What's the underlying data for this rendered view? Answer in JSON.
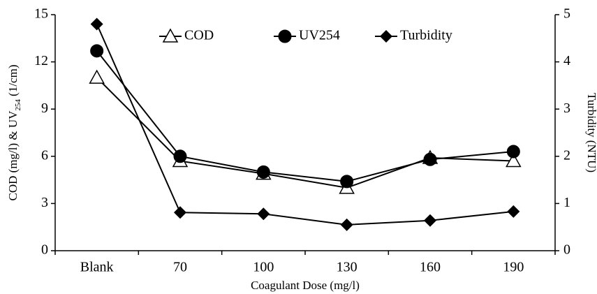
{
  "chart_data": {
    "type": "line",
    "categories": [
      "Blank",
      "70",
      "100",
      "130",
      "160",
      "190"
    ],
    "x_label": "Coagulant Dose (mg/l)",
    "y_label": [
      "COD (mg/l) & UV",
      "254",
      " (1/cm)"
    ],
    "y2_label": "Turbidity (NTU)",
    "ylim": [
      0,
      15
    ],
    "yticks": [
      0,
      3,
      6,
      9,
      12,
      15
    ],
    "y2lim": [
      0,
      5
    ],
    "y2ticks": [
      0,
      1,
      2,
      3,
      4,
      5
    ],
    "legend": "top",
    "series": [
      {
        "name": "COD",
        "color": "#000000",
        "marker": "triangle-open",
        "values": [
          11.0,
          5.7,
          4.9,
          4.0,
          5.9,
          5.7
        ]
      },
      {
        "name": "UV254",
        "color": "#000000",
        "marker": "circle",
        "values": [
          12.7,
          6.0,
          5.0,
          4.4,
          5.8,
          6.3
        ]
      },
      {
        "name": "Turbidity",
        "color": "#000000",
        "marker": "diamond",
        "axis": "y2",
        "values": [
          4.8,
          0.81,
          0.78,
          0.55,
          0.64,
          0.83
        ]
      }
    ]
  }
}
